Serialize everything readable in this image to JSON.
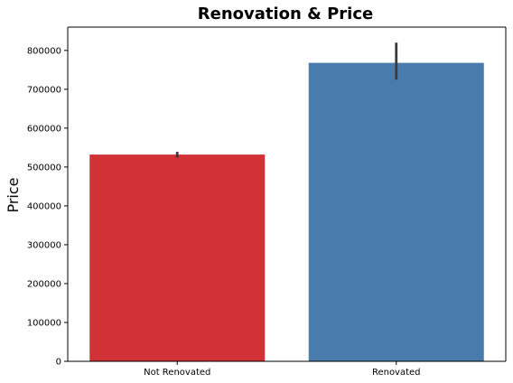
{
  "chart_data": {
    "type": "bar",
    "title": "Renovation & Price",
    "xlabel": "",
    "ylabel": "Price",
    "categories": [
      "Not Renovated",
      "Renovated"
    ],
    "values": [
      532000,
      768000
    ],
    "error_bars": [
      [
        524000,
        539000
      ],
      [
        725000,
        820000
      ]
    ],
    "colors": [
      "#d03235",
      "#497cad"
    ],
    "ylim": [
      0,
      860000
    ],
    "yticks": [
      0,
      100000,
      200000,
      300000,
      400000,
      500000,
      600000,
      700000,
      800000
    ],
    "grid": false,
    "legend": "none"
  }
}
